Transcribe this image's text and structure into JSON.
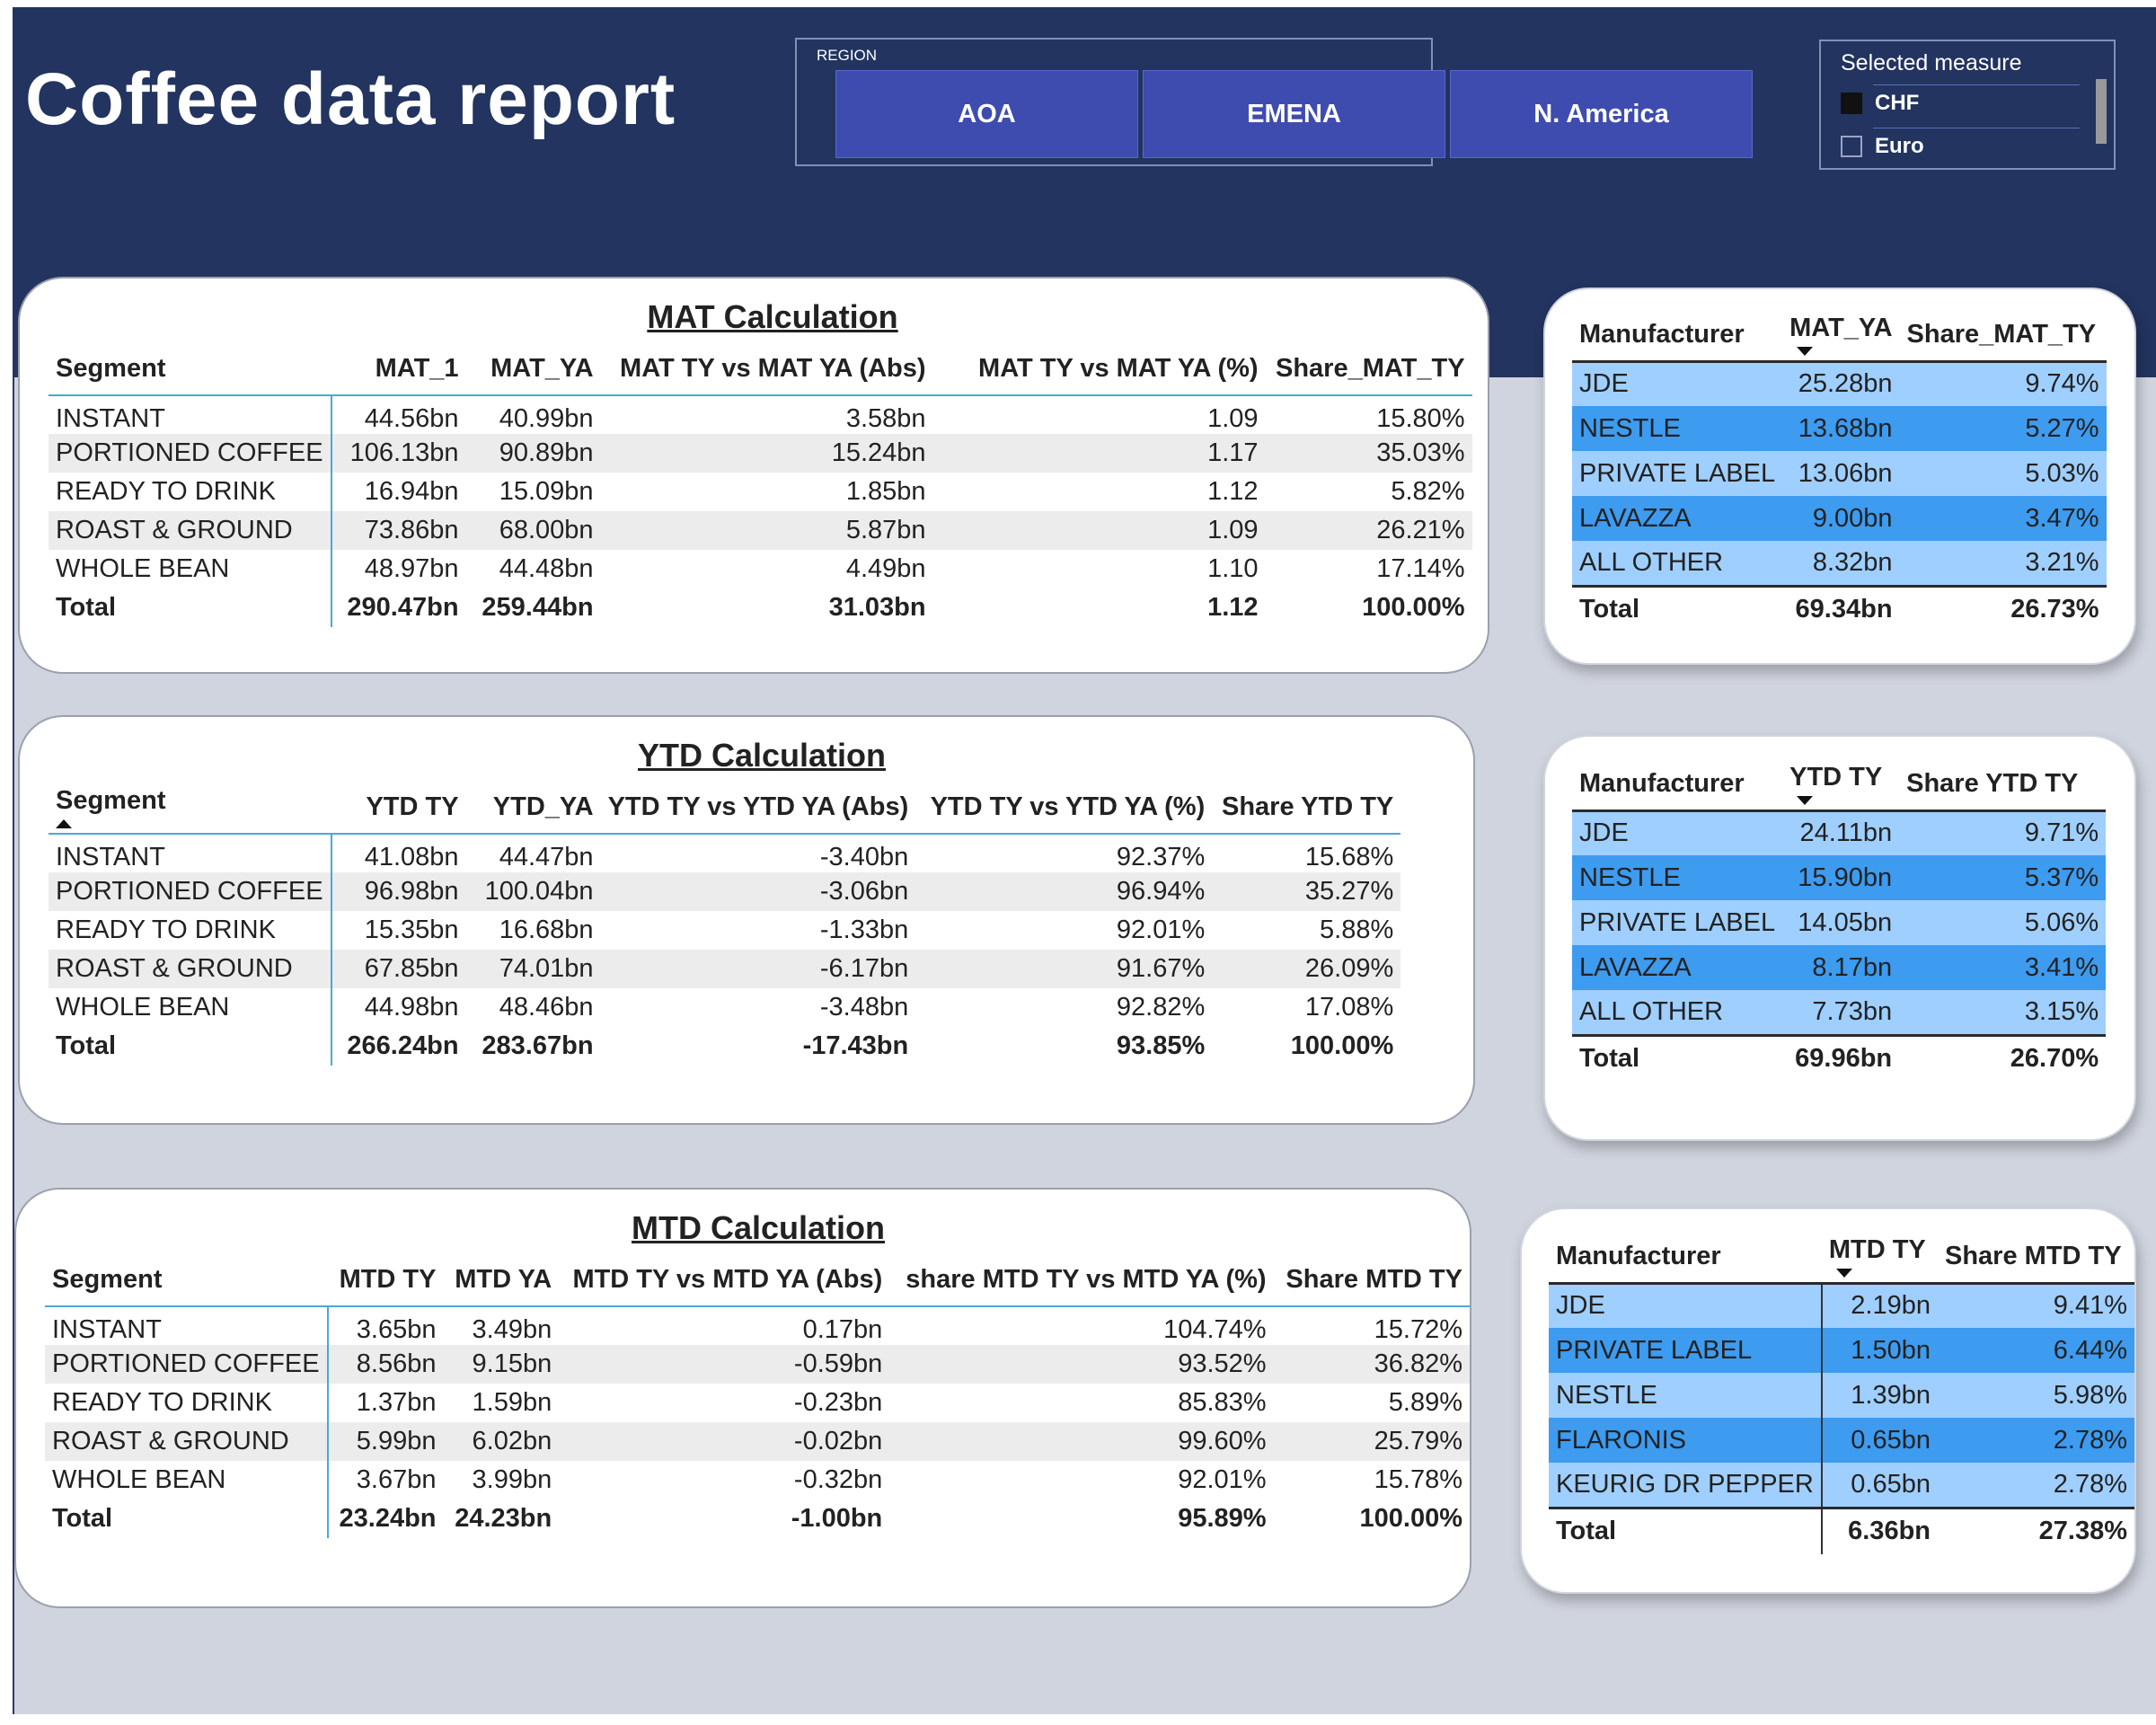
{
  "app": {
    "title": "Coffee data report"
  },
  "region_slicer": {
    "label": "REGION",
    "options": [
      "AOA",
      "EMENA",
      "N. America"
    ]
  },
  "measure_selector": {
    "title": "Selected measure",
    "options": [
      {
        "label": "CHF",
        "checked": true
      },
      {
        "label": "Euro",
        "checked": false
      }
    ]
  },
  "mat": {
    "title": "MAT Calculation",
    "headers": [
      "Segment",
      "MAT_1",
      "MAT_YA",
      "MAT TY vs MAT YA (Abs)",
      "MAT TY vs MAT YA (%)",
      "Share_MAT_TY"
    ],
    "rows": [
      [
        "INSTANT",
        "44.56bn",
        "40.99bn",
        "3.58bn",
        "1.09",
        "15.80%"
      ],
      [
        "PORTIONED COFFEE",
        "106.13bn",
        "90.89bn",
        "15.24bn",
        "1.17",
        "35.03%"
      ],
      [
        "READY TO DRINK",
        "16.94bn",
        "15.09bn",
        "1.85bn",
        "1.12",
        "5.82%"
      ],
      [
        "ROAST & GROUND",
        "73.86bn",
        "68.00bn",
        "5.87bn",
        "1.09",
        "26.21%"
      ],
      [
        "WHOLE BEAN",
        "48.97bn",
        "44.48bn",
        "4.49bn",
        "1.10",
        "17.14%"
      ]
    ],
    "total": [
      "Total",
      "290.47bn",
      "259.44bn",
      "31.03bn",
      "1.12",
      "100.00%"
    ]
  },
  "ytd": {
    "title": "YTD Calculation",
    "headers": [
      "Segment",
      "YTD TY",
      "YTD_YA",
      "YTD TY vs YTD YA (Abs)",
      "YTD TY vs YTD YA (%)",
      "Share YTD TY"
    ],
    "rows": [
      [
        "INSTANT",
        "41.08bn",
        "44.47bn",
        "-3.40bn",
        "92.37%",
        "15.68%"
      ],
      [
        "PORTIONED COFFEE",
        "96.98bn",
        "100.04bn",
        "-3.06bn",
        "96.94%",
        "35.27%"
      ],
      [
        "READY TO DRINK",
        "15.35bn",
        "16.68bn",
        "-1.33bn",
        "92.01%",
        "5.88%"
      ],
      [
        "ROAST & GROUND",
        "67.85bn",
        "74.01bn",
        "-6.17bn",
        "91.67%",
        "26.09%"
      ],
      [
        "WHOLE BEAN",
        "44.98bn",
        "48.46bn",
        "-3.48bn",
        "92.82%",
        "17.08%"
      ]
    ],
    "total": [
      "Total",
      "266.24bn",
      "283.67bn",
      "-17.43bn",
      "93.85%",
      "100.00%"
    ]
  },
  "mtd": {
    "title": "MTD Calculation",
    "headers": [
      "Segment",
      "MTD TY",
      "MTD YA",
      "MTD TY vs MTD YA (Abs)",
      "share MTD TY vs MTD YA (%)",
      "Share MTD TY"
    ],
    "rows": [
      [
        "INSTANT",
        "3.65bn",
        "3.49bn",
        "0.17bn",
        "104.74%",
        "15.72%"
      ],
      [
        "PORTIONED COFFEE",
        "8.56bn",
        "9.15bn",
        "-0.59bn",
        "93.52%",
        "36.82%"
      ],
      [
        "READY TO DRINK",
        "1.37bn",
        "1.59bn",
        "-0.23bn",
        "85.83%",
        "5.89%"
      ],
      [
        "ROAST & GROUND",
        "5.99bn",
        "6.02bn",
        "-0.02bn",
        "99.60%",
        "25.79%"
      ],
      [
        "WHOLE BEAN",
        "3.67bn",
        "3.99bn",
        "-0.32bn",
        "92.01%",
        "15.78%"
      ]
    ],
    "total": [
      "Total",
      "23.24bn",
      "24.23bn",
      "-1.00bn",
      "95.89%",
      "100.00%"
    ]
  },
  "mfr_mat": {
    "headers": [
      "Manufacturer",
      "MAT_YA",
      "Share_MAT_TY"
    ],
    "rows": [
      [
        "JDE",
        "25.28bn",
        "9.74%"
      ],
      [
        "NESTLE",
        "13.68bn",
        "5.27%"
      ],
      [
        "PRIVATE LABEL",
        "13.06bn",
        "5.03%"
      ],
      [
        "LAVAZZA",
        "9.00bn",
        "3.47%"
      ],
      [
        "ALL OTHER",
        "8.32bn",
        "3.21%"
      ]
    ],
    "total": [
      "Total",
      "69.34bn",
      "26.73%"
    ]
  },
  "mfr_ytd": {
    "headers": [
      "Manufacturer",
      "YTD TY",
      "Share YTD TY"
    ],
    "rows": [
      [
        "JDE",
        "24.11bn",
        "9.71%"
      ],
      [
        "NESTLE",
        "15.90bn",
        "5.37%"
      ],
      [
        "PRIVATE LABEL",
        "14.05bn",
        "5.06%"
      ],
      [
        "LAVAZZA",
        "8.17bn",
        "3.41%"
      ],
      [
        "ALL OTHER",
        "7.73bn",
        "3.15%"
      ]
    ],
    "total": [
      "Total",
      "69.96bn",
      "26.70%"
    ]
  },
  "mfr_mtd": {
    "headers": [
      "Manufacturer",
      "MTD TY",
      "Share MTD TY"
    ],
    "rows": [
      [
        "JDE",
        "2.19bn",
        "9.41%"
      ],
      [
        "PRIVATE LABEL",
        "1.50bn",
        "6.44%"
      ],
      [
        "NESTLE",
        "1.39bn",
        "5.98%"
      ],
      [
        "FLARONIS",
        "0.65bn",
        "2.78%"
      ],
      [
        "KEURIG DR PEPPER",
        "0.65bn",
        "2.78%"
      ]
    ],
    "total": [
      "Total",
      "6.36bn",
      "27.38%"
    ]
  }
}
